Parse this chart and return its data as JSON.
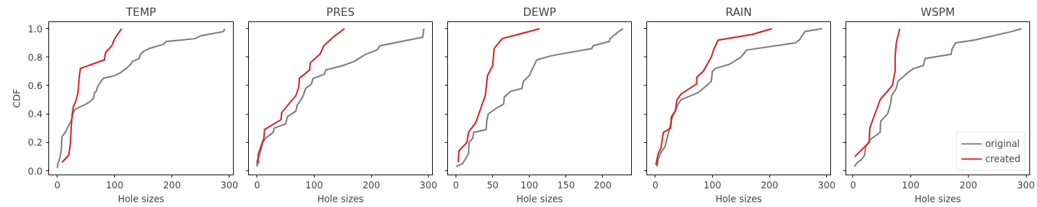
{
  "chart_data": [
    {
      "type": "line",
      "title": "TEMP",
      "xlabel": "Hole sizes",
      "ylabel": "CDF",
      "xlim": [
        -15,
        307
      ],
      "xticks": [
        0,
        100,
        200,
        300
      ],
      "ylim": [
        -0.029,
        1.049
      ],
      "yticks": [
        {
          "value": 0,
          "label": "0.0"
        },
        0.2,
        0.4,
        0.6,
        0.8,
        {
          "value": 1,
          "label": "1.0"
        }
      ],
      "series": [
        {
          "color": "#7f7f7f",
          "x": [
            0,
            1,
            3,
            5,
            7,
            8,
            12,
            15,
            20,
            25,
            27,
            30,
            40,
            50,
            58,
            63,
            65,
            68,
            70,
            73,
            80,
            100,
            110,
            120,
            128,
            131,
            143,
            145,
            150,
            160,
            185,
            190,
            240,
            250,
            290,
            292
          ],
          "values": [
            0.02,
            0.05,
            0.07,
            0.1,
            0.15,
            0.24,
            0.26,
            0.28,
            0.32,
            0.36,
            0.4,
            0.43,
            0.45,
            0.47,
            0.49,
            0.51,
            0.55,
            0.56,
            0.59,
            0.61,
            0.65,
            0.67,
            0.69,
            0.72,
            0.75,
            0.77,
            0.79,
            0.82,
            0.84,
            0.86,
            0.89,
            0.91,
            0.93,
            0.95,
            0.98,
            1.0
          ]
        },
        {
          "color": "#d62728",
          "x": [
            8,
            20,
            23,
            24,
            26,
            28,
            33,
            36,
            38,
            40,
            82,
            84,
            95,
            100,
            112
          ],
          "values": [
            0.06,
            0.11,
            0.2,
            0.3,
            0.4,
            0.45,
            0.5,
            0.55,
            0.65,
            0.72,
            0.78,
            0.83,
            0.88,
            0.93,
            1.0
          ]
        }
      ]
    },
    {
      "type": "line",
      "title": "PRES",
      "xlabel": "Hole sizes",
      "xlim": [
        -15,
        307
      ],
      "xticks": [
        0,
        100,
        200,
        300
      ],
      "ylim": [
        -0.029,
        1.049
      ],
      "yticks": [
        0,
        0.2,
        0.4,
        0.6,
        0.8,
        1
      ],
      "tick_labels": "x",
      "series": [
        {
          "color": "#7f7f7f",
          "x": [
            0,
            0,
            5,
            10,
            15,
            28,
            30,
            50,
            53,
            68,
            70,
            75,
            80,
            85,
            95,
            98,
            118,
            120,
            150,
            170,
            190,
            210,
            215,
            290,
            292
          ],
          "values": [
            0.03,
            0.07,
            0.12,
            0.2,
            0.23,
            0.27,
            0.3,
            0.33,
            0.38,
            0.42,
            0.46,
            0.49,
            0.52,
            0.58,
            0.61,
            0.65,
            0.68,
            0.71,
            0.74,
            0.77,
            0.82,
            0.85,
            0.88,
            0.94,
            1.0
          ]
        },
        {
          "color": "#d62728",
          "x": [
            2,
            2,
            5,
            12,
            13,
            42,
            43,
            68,
            73,
            74,
            92,
            93,
            110,
            117,
            133,
            153
          ],
          "values": [
            0.05,
            0.12,
            0.15,
            0.23,
            0.29,
            0.36,
            0.41,
            0.53,
            0.59,
            0.65,
            0.71,
            0.76,
            0.82,
            0.88,
            0.94,
            1.0
          ]
        }
      ]
    },
    {
      "type": "line",
      "title": "DEWP",
      "xlabel": "Hole sizes",
      "xlim": [
        -11.4,
        239.4
      ],
      "xticks": [
        0,
        50,
        100,
        150,
        200
      ],
      "ylim": [
        -0.029,
        1.049
      ],
      "yticks": [
        0,
        0.2,
        0.4,
        0.6,
        0.8,
        1
      ],
      "tick_labels": "x",
      "series": [
        {
          "color": "#7f7f7f",
          "x": [
            0,
            9,
            17,
            18,
            23,
            24,
            41,
            42,
            44,
            55,
            65,
            66,
            75,
            90,
            92,
            100,
            110,
            130,
            185,
            187,
            209,
            210,
            222,
            228
          ],
          "values": [
            0.03,
            0.05,
            0.12,
            0.2,
            0.23,
            0.27,
            0.29,
            0.35,
            0.4,
            0.44,
            0.47,
            0.52,
            0.56,
            0.58,
            0.63,
            0.67,
            0.78,
            0.81,
            0.86,
            0.88,
            0.91,
            0.93,
            0.98,
            1.0
          ]
        },
        {
          "color": "#d62728",
          "x": [
            3,
            4,
            15,
            17,
            27,
            40,
            43,
            50,
            52,
            63,
            114
          ],
          "values": [
            0.06,
            0.14,
            0.2,
            0.27,
            0.34,
            0.53,
            0.67,
            0.74,
            0.86,
            0.93,
            1.0
          ]
        }
      ]
    },
    {
      "type": "line",
      "title": "RAIN",
      "xlabel": "Hole sizes",
      "xlim": [
        -15,
        307
      ],
      "xticks": [
        0,
        100,
        200,
        300
      ],
      "ylim": [
        -0.029,
        1.049
      ],
      "yticks": [
        0,
        0.2,
        0.4,
        0.6,
        0.8,
        1
      ],
      "tick_labels": "x",
      "series": [
        {
          "color": "#7f7f7f",
          "x": [
            3,
            5,
            10,
            17,
            22,
            25,
            30,
            40,
            45,
            75,
            90,
            98,
            100,
            105,
            130,
            150,
            160,
            245,
            252,
            262,
            292
          ],
          "values": [
            0.03,
            0.08,
            0.13,
            0.17,
            0.25,
            0.3,
            0.38,
            0.47,
            0.5,
            0.55,
            0.6,
            0.63,
            0.7,
            0.72,
            0.75,
            0.8,
            0.85,
            0.9,
            0.92,
            0.98,
            1.0
          ]
        },
        {
          "color": "#d62728",
          "x": [
            1,
            5,
            10,
            14,
            27,
            28,
            35,
            38,
            45,
            72,
            73,
            84,
            98,
            102,
            110,
            170,
            204
          ],
          "values": [
            0.04,
            0.12,
            0.16,
            0.27,
            0.3,
            0.38,
            0.42,
            0.5,
            0.54,
            0.61,
            0.66,
            0.7,
            0.8,
            0.85,
            0.92,
            0.96,
            1.0
          ]
        }
      ]
    },
    {
      "type": "line",
      "title": "WSPM",
      "xlabel": "Hole sizes",
      "xlim": [
        -12.5,
        306.5
      ],
      "xticks": [
        0,
        100,
        200,
        300
      ],
      "ylim": [
        -0.029,
        1.049
      ],
      "yticks": [
        0,
        0.2,
        0.4,
        0.6,
        0.8,
        1
      ],
      "tick_labels": "x",
      "legend": "bottom right",
      "series": [
        {
          "name": "original",
          "color": "#7f7f7f",
          "x": [
            2,
            8,
            15,
            20,
            22,
            30,
            40,
            47,
            48,
            60,
            65,
            67,
            75,
            78,
            95,
            105,
            122,
            125,
            170,
            172,
            178,
            210,
            275,
            292
          ],
          "values": [
            0.03,
            0.06,
            0.08,
            0.11,
            0.17,
            0.22,
            0.25,
            0.27,
            0.35,
            0.4,
            0.47,
            0.53,
            0.58,
            0.63,
            0.69,
            0.72,
            0.74,
            0.79,
            0.82,
            0.86,
            0.9,
            0.92,
            0.98,
            1.0
          ]
        },
        {
          "name": "created",
          "color": "#d62728",
          "x": [
            3,
            28,
            29,
            47,
            68,
            73,
            73,
            75,
            81
          ],
          "values": [
            0.1,
            0.2,
            0.3,
            0.5,
            0.6,
            0.7,
            0.8,
            0.9,
            1.0
          ]
        }
      ]
    }
  ]
}
